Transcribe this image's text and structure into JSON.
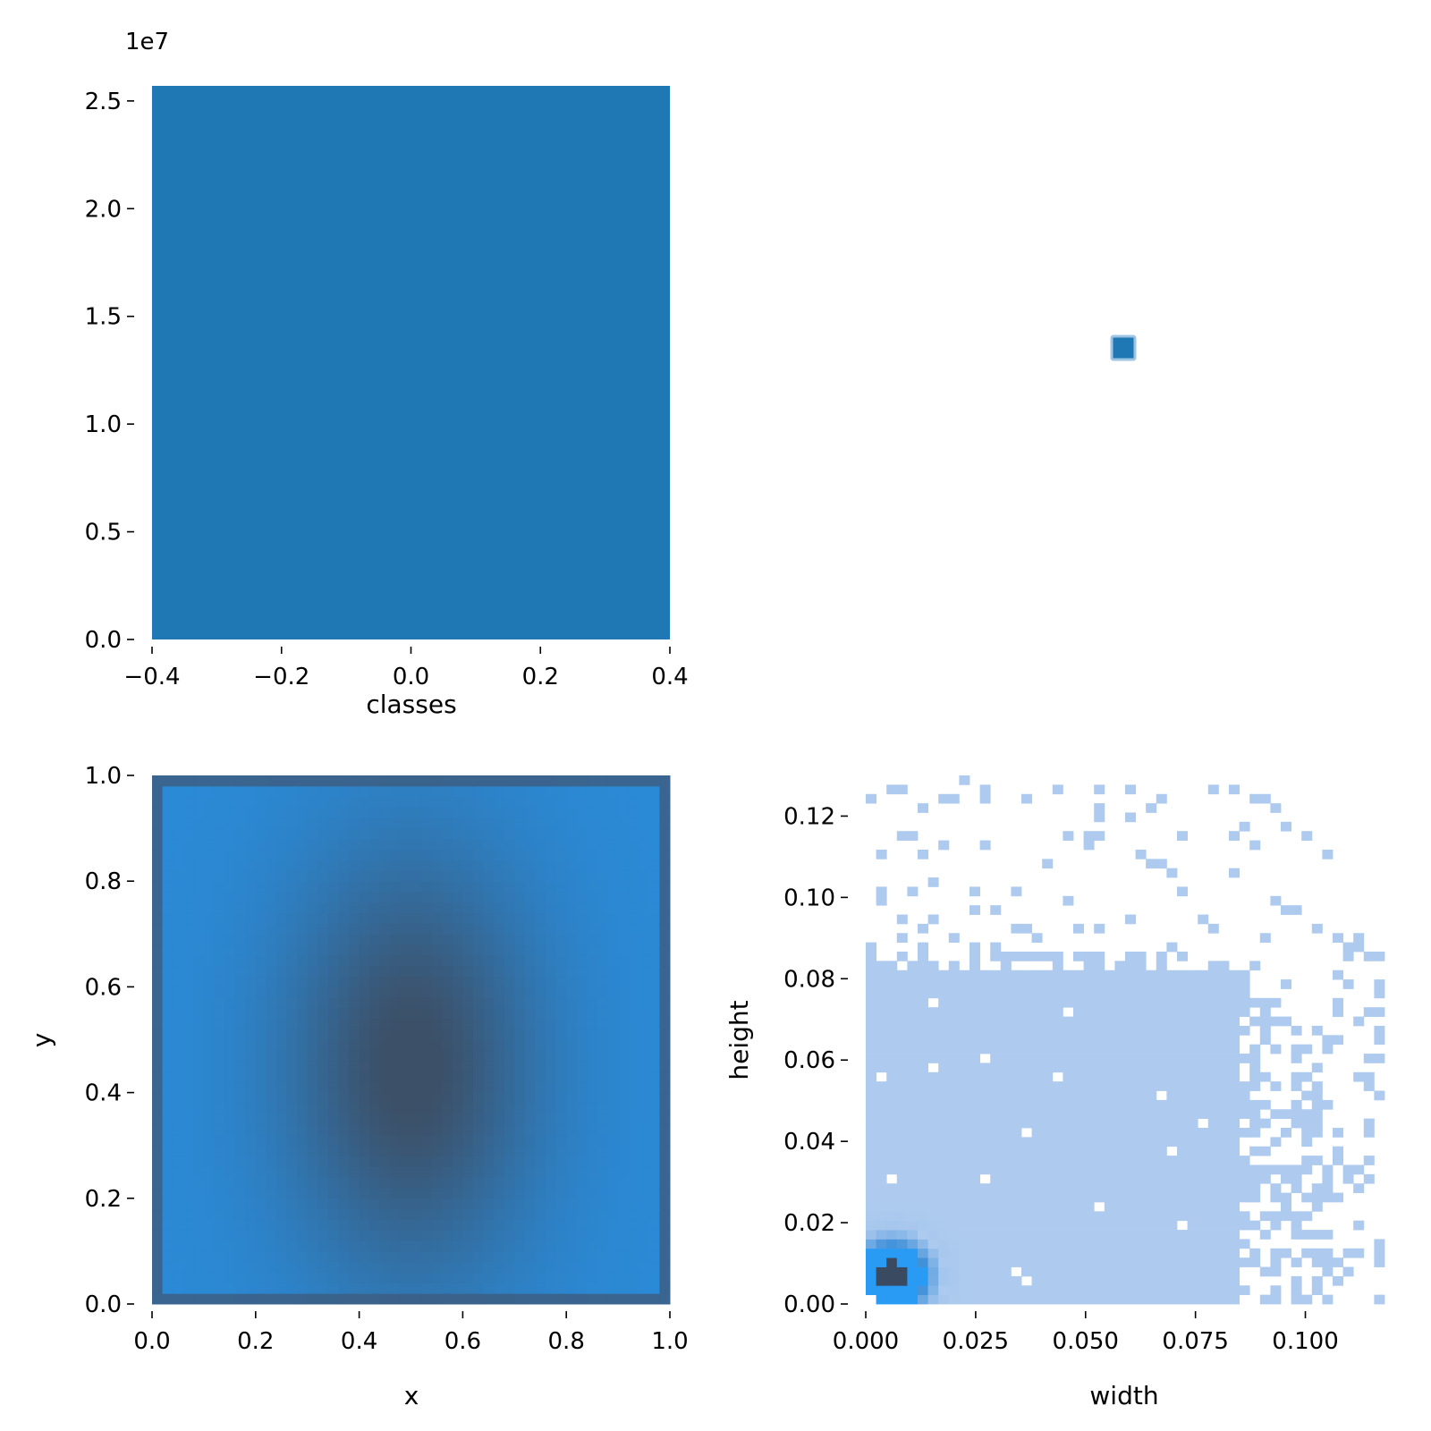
{
  "colors": {
    "bar": "#1f77b4",
    "hist_light": "#aecbef",
    "hist_mid": "#3d8fd8",
    "hist_bright": "#2a9bf5",
    "hist_dark": "#3a4a60",
    "heat_edge": "#2b8ad6",
    "heat_center": "#3c5068",
    "heat_border": "#3a6590"
  },
  "chart_data": [
    {
      "type": "bar",
      "panel": "top-left",
      "xlabel": "classes",
      "ylabel": "",
      "offset_text": "1e7",
      "categories": [
        0
      ],
      "values": [
        2.57
      ],
      "bar_x_range": [
        -0.4,
        0.4
      ],
      "xlim": [
        -0.4,
        0.4
      ],
      "ylim": [
        0,
        2.57
      ],
      "xticks": [
        -0.4,
        -0.2,
        0.0,
        0.2,
        0.4
      ],
      "xtick_labels": [
        "−0.4",
        "−0.2",
        "0.0",
        "0.2",
        "0.4"
      ],
      "yticks": [
        0.0,
        0.5,
        1.0,
        1.5,
        2.0,
        2.5
      ],
      "ytick_labels": [
        "0.0",
        "0.5",
        "1.0",
        "1.5",
        "2.0",
        "2.5"
      ]
    },
    {
      "type": "scatter",
      "panel": "top-right",
      "xlabel": "",
      "ylabel": "",
      "axes_visible": false,
      "points": [
        {
          "x": 0,
          "y": 0
        }
      ]
    },
    {
      "type": "heatmap",
      "panel": "bottom-left",
      "xlabel": "x",
      "ylabel": "y",
      "xlim": [
        0,
        1
      ],
      "ylim": [
        0,
        1
      ],
      "bins": 50,
      "distribution": "dense in center, x centered 0.5, y centered 0.45",
      "xticks": [
        0.0,
        0.2,
        0.4,
        0.6,
        0.8,
        1.0
      ],
      "xtick_labels": [
        "0.0",
        "0.2",
        "0.4",
        "0.6",
        "0.8",
        "1.0"
      ],
      "yticks": [
        0.0,
        0.2,
        0.4,
        0.6,
        0.8,
        1.0
      ],
      "ytick_labels": [
        "0.0",
        "0.2",
        "0.4",
        "0.6",
        "0.8",
        "1.0"
      ]
    },
    {
      "type": "heatmap",
      "panel": "bottom-right",
      "xlabel": "width",
      "ylabel": "height",
      "xlim": [
        0,
        0.118
      ],
      "ylim": [
        0,
        0.13
      ],
      "bins": 50,
      "peak": {
        "width": 0.006,
        "height": 0.007
      },
      "xticks": [
        0.0,
        0.025,
        0.05,
        0.075,
        0.1
      ],
      "xtick_labels": [
        "0.000",
        "0.025",
        "0.050",
        "0.075",
        "0.100"
      ],
      "yticks": [
        0.0,
        0.02,
        0.04,
        0.06,
        0.08,
        0.1,
        0.12
      ],
      "ytick_labels": [
        "0.00",
        "0.02",
        "0.04",
        "0.06",
        "0.08",
        "0.10",
        "0.12"
      ]
    }
  ]
}
